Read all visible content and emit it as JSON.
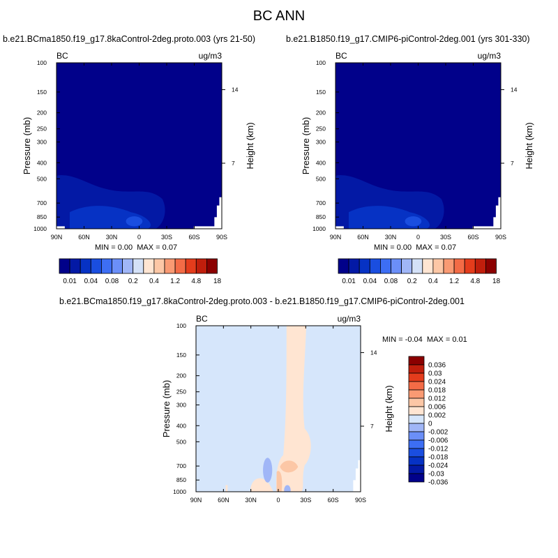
{
  "main_title": "BC ANN",
  "colors": {
    "abs_levels": [
      "#01018a",
      "#0319a5",
      "#0632c4",
      "#1a4ee0",
      "#3d6ef4",
      "#6b8ff8",
      "#a0b6f7",
      "#d4e1f7",
      "#ffe5d2",
      "#fcc7a6",
      "#f99a73",
      "#f36b46",
      "#e43c1c",
      "#c01e0c",
      "#8b0000"
    ],
    "diff_levels": [
      "#01018a",
      "#0319a5",
      "#0632c4",
      "#1a4ee0",
      "#3d6ef4",
      "#6b8ff8",
      "#a0b6f7",
      "#d6e6fb",
      "#ffe5d2",
      "#fcc7a6",
      "#f99a73",
      "#f36b46",
      "#e43c1c",
      "#c01e0c",
      "#8b0000"
    ]
  },
  "chart_data": [
    {
      "type": "heatmap",
      "title": "b.e21.BCma1850.f19_g17.8kaControl-2deg.proto.003 (yrs 21-50)",
      "left_label": "BC",
      "right_label": "ug/m3",
      "ylabel": "Pressure (mb)",
      "y2label": "Height (km)",
      "x_ticks": [
        "90N",
        "60N",
        "30N",
        "0",
        "30S",
        "60S",
        "90S"
      ],
      "y_ticks": [
        "100",
        "150",
        "200",
        "250",
        "300",
        "400",
        "500",
        "700",
        "850",
        "1000"
      ],
      "y2_ticks": [
        "14",
        "7"
      ],
      "min_label": "MIN =",
      "min_value": "0.00",
      "max_label": "MAX =",
      "max_value": "0.07",
      "colorbar_labels": [
        "0.01",
        "0.04",
        "0.08",
        "0.2",
        "0.4",
        "1.2",
        "4.8",
        "18"
      ]
    },
    {
      "type": "heatmap",
      "title": "b.e21.B1850.f19_g17.CMIP6-piControl-2deg.001 (yrs 301-330)",
      "left_label": "BC",
      "right_label": "ug/m3",
      "ylabel": "Pressure (mb)",
      "y2label": "Height (km)",
      "x_ticks": [
        "90N",
        "60N",
        "30N",
        "0",
        "30S",
        "60S",
        "90S"
      ],
      "y_ticks": [
        "100",
        "150",
        "200",
        "250",
        "300",
        "400",
        "500",
        "700",
        "850",
        "1000"
      ],
      "y2_ticks": [
        "14",
        "7"
      ],
      "min_label": "MIN =",
      "min_value": "0.00",
      "max_label": "MAX =",
      "max_value": "0.07",
      "colorbar_labels": [
        "0.01",
        "0.04",
        "0.08",
        "0.2",
        "0.4",
        "1.2",
        "4.8",
        "18"
      ]
    },
    {
      "type": "heatmap",
      "title": "b.e21.BCma1850.f19_g17.8kaControl-2deg.proto.003 - b.e21.B1850.f19_g17.CMIP6-piControl-2deg.001",
      "left_label": "BC",
      "right_label": "ug/m3",
      "ylabel": "Pressure (mb)",
      "y2label": "Height (km)",
      "x_ticks": [
        "90N",
        "60N",
        "30N",
        "0",
        "30S",
        "60S",
        "90S"
      ],
      "y_ticks": [
        "100",
        "150",
        "200",
        "250",
        "300",
        "400",
        "500",
        "700",
        "850",
        "1000"
      ],
      "y2_ticks": [
        "14",
        "7"
      ],
      "min_label": "MIN =",
      "min_value": "-0.04",
      "max_label": "MAX =",
      "max_value": "0.01",
      "colorbar_labels": [
        "0.036",
        "0.03",
        "0.024",
        "0.018",
        "0.012",
        "0.006",
        "0.002",
        "0",
        "-0.002",
        "-0.006",
        "-0.012",
        "-0.018",
        "-0.024",
        "-0.03",
        "-0.036"
      ]
    }
  ]
}
